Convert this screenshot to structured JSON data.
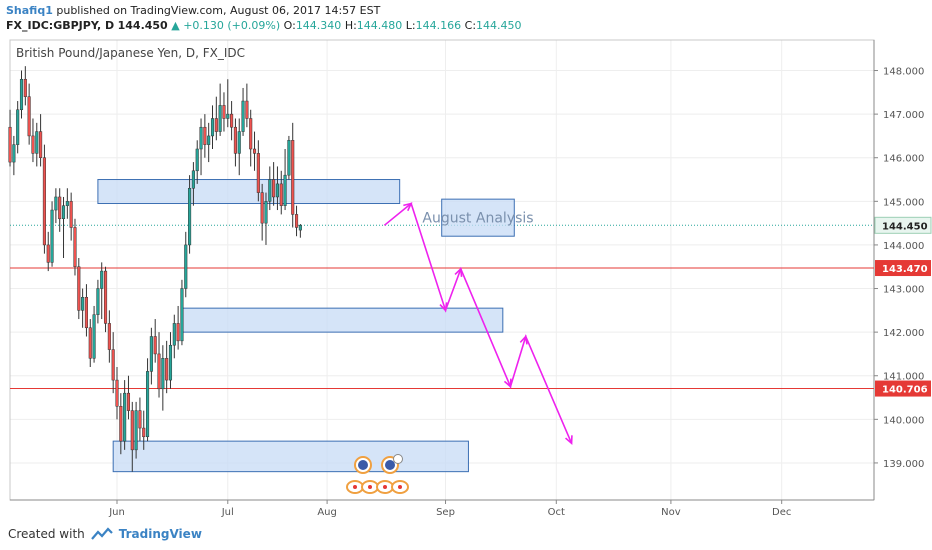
{
  "header": {
    "author": "Shafiq1",
    "published_text": "published on TradingView.com, August 06, 2017 14:57 EST",
    "symbol": "FX_IDC:GBPJPY, D",
    "last": "144.450",
    "change": "+0.130 (+0.09%)",
    "o_label": "O:",
    "o": "144.340",
    "h_label": "H:",
    "h": "144.480",
    "l_label": "L:",
    "l": "144.166",
    "c_label": "C:",
    "c": "144.450"
  },
  "footer": {
    "created_with": "Created with",
    "brand": "TradingView"
  },
  "colors": {
    "up": "#26a69a",
    "down": "#ef5350",
    "zone_fill": "#c7dbf5",
    "zone_stroke": "#3c6fb3",
    "red_line": "#e53935",
    "arrow": "#ee22ee",
    "price_dotted": "#26a69a",
    "axis_text": "#555555"
  },
  "chart_data": {
    "type": "candlestick",
    "title": "British Pound/Japanese Yen, D, FX_IDC",
    "y_ticks": [
      "148.000",
      "147.000",
      "146.000",
      "145.000",
      "144.000",
      "143.000",
      "142.000",
      "141.000",
      "140.000",
      "139.000"
    ],
    "x_ticks": [
      "Jun",
      "Jul",
      "Aug",
      "Sep",
      "Oct",
      "Nov",
      "Dec"
    ],
    "ylim": [
      138.15,
      148.7
    ],
    "last_price_label": "144.450",
    "last_price": 144.45,
    "levels": [
      {
        "price": 143.47,
        "label": "143.470"
      },
      {
        "price": 140.706,
        "label": "140.706"
      }
    ],
    "zones": [
      {
        "from_day": -5,
        "to_day": 74,
        "low": 144.95,
        "high": 145.5
      },
      {
        "from_day": 17,
        "to_day": 101,
        "low": 142.0,
        "high": 142.55
      },
      {
        "from_day": -1,
        "to_day": 92,
        "low": 138.8,
        "high": 139.5
      }
    ],
    "annotation": {
      "text": "August Analysis",
      "from_day": 85,
      "to_day": 104,
      "low": 144.2,
      "high": 145.05
    },
    "projection": [
      {
        "day": 70,
        "price": 144.45
      },
      {
        "day": 77,
        "price": 144.95
      },
      {
        "day": 86,
        "price": 142.5
      },
      {
        "day": 90,
        "price": 143.45
      },
      {
        "day": 103,
        "price": 140.75
      },
      {
        "day": 107,
        "price": 141.9
      },
      {
        "day": 119,
        "price": 139.45
      }
    ],
    "candles": [
      {
        "d": -28,
        "o": 146.7,
        "h": 147.1,
        "l": 145.8,
        "c": 145.9
      },
      {
        "d": -27,
        "o": 145.9,
        "h": 146.5,
        "l": 145.6,
        "c": 146.3
      },
      {
        "d": -26,
        "o": 146.3,
        "h": 147.3,
        "l": 146.1,
        "c": 147.1
      },
      {
        "d": -25,
        "o": 147.1,
        "h": 148.0,
        "l": 146.9,
        "c": 147.8
      },
      {
        "d": -24,
        "o": 147.8,
        "h": 148.1,
        "l": 147.2,
        "c": 147.4
      },
      {
        "d": -23,
        "o": 147.4,
        "h": 147.7,
        "l": 146.3,
        "c": 146.5
      },
      {
        "d": -22,
        "o": 146.5,
        "h": 146.9,
        "l": 145.9,
        "c": 146.1
      },
      {
        "d": -21,
        "o": 146.1,
        "h": 146.8,
        "l": 145.8,
        "c": 146.6
      },
      {
        "d": -20,
        "o": 146.6,
        "h": 147.0,
        "l": 145.8,
        "c": 146.0
      },
      {
        "d": -19,
        "o": 146.0,
        "h": 146.3,
        "l": 143.8,
        "c": 144.0
      },
      {
        "d": -18,
        "o": 144.0,
        "h": 144.3,
        "l": 143.4,
        "c": 143.6
      },
      {
        "d": -17,
        "o": 143.6,
        "h": 145.0,
        "l": 143.5,
        "c": 144.8
      },
      {
        "d": -16,
        "o": 144.8,
        "h": 145.3,
        "l": 144.5,
        "c": 145.1
      },
      {
        "d": -15,
        "o": 145.1,
        "h": 145.3,
        "l": 144.3,
        "c": 144.6
      },
      {
        "d": -14,
        "o": 144.6,
        "h": 145.1,
        "l": 143.7,
        "c": 144.9
      },
      {
        "d": -13,
        "o": 144.9,
        "h": 145.3,
        "l": 144.6,
        "c": 145.0
      },
      {
        "d": -12,
        "o": 145.0,
        "h": 145.2,
        "l": 144.1,
        "c": 144.4
      },
      {
        "d": -11,
        "o": 144.4,
        "h": 144.6,
        "l": 143.3,
        "c": 143.5
      },
      {
        "d": -10,
        "o": 143.5,
        "h": 143.7,
        "l": 142.3,
        "c": 142.5
      },
      {
        "d": -9,
        "o": 142.5,
        "h": 143.0,
        "l": 142.1,
        "c": 142.8
      },
      {
        "d": -8,
        "o": 142.8,
        "h": 143.1,
        "l": 141.9,
        "c": 142.1
      },
      {
        "d": -7,
        "o": 142.1,
        "h": 142.3,
        "l": 141.2,
        "c": 141.4
      },
      {
        "d": -6,
        "o": 141.4,
        "h": 142.6,
        "l": 141.3,
        "c": 142.4
      },
      {
        "d": -5,
        "o": 142.4,
        "h": 143.2,
        "l": 142.2,
        "c": 143.0
      },
      {
        "d": -4,
        "o": 143.0,
        "h": 143.6,
        "l": 142.3,
        "c": 143.4
      },
      {
        "d": -3,
        "o": 143.4,
        "h": 143.5,
        "l": 142.0,
        "c": 142.2
      },
      {
        "d": -2,
        "o": 142.2,
        "h": 142.5,
        "l": 141.3,
        "c": 141.6
      },
      {
        "d": -1,
        "o": 141.6,
        "h": 142.0,
        "l": 140.6,
        "c": 140.9
      },
      {
        "d": 0,
        "o": 140.9,
        "h": 141.2,
        "l": 140.0,
        "c": 140.3
      },
      {
        "d": 1,
        "o": 140.3,
        "h": 140.6,
        "l": 139.2,
        "c": 139.5
      },
      {
        "d": 2,
        "o": 139.5,
        "h": 140.9,
        "l": 139.3,
        "c": 140.6
      },
      {
        "d": 3,
        "o": 140.6,
        "h": 141.0,
        "l": 140.0,
        "c": 140.2
      },
      {
        "d": 4,
        "o": 140.2,
        "h": 140.4,
        "l": 138.8,
        "c": 139.3
      },
      {
        "d": 5,
        "o": 139.3,
        "h": 140.4,
        "l": 139.1,
        "c": 140.2
      },
      {
        "d": 6,
        "o": 140.2,
        "h": 140.5,
        "l": 139.5,
        "c": 139.8
      },
      {
        "d": 7,
        "o": 139.8,
        "h": 140.2,
        "l": 139.3,
        "c": 139.6
      },
      {
        "d": 8,
        "o": 139.6,
        "h": 141.4,
        "l": 139.5,
        "c": 141.1
      },
      {
        "d": 9,
        "o": 141.1,
        "h": 142.1,
        "l": 140.8,
        "c": 141.9
      },
      {
        "d": 10,
        "o": 141.9,
        "h": 142.3,
        "l": 141.3,
        "c": 141.5
      },
      {
        "d": 11,
        "o": 141.5,
        "h": 142.0,
        "l": 140.5,
        "c": 140.7
      },
      {
        "d": 12,
        "o": 140.7,
        "h": 141.7,
        "l": 140.2,
        "c": 141.4
      },
      {
        "d": 13,
        "o": 141.4,
        "h": 141.8,
        "l": 140.6,
        "c": 140.9
      },
      {
        "d": 14,
        "o": 140.9,
        "h": 142.0,
        "l": 140.7,
        "c": 141.7
      },
      {
        "d": 15,
        "o": 141.7,
        "h": 142.4,
        "l": 141.4,
        "c": 142.2
      },
      {
        "d": 16,
        "o": 142.2,
        "h": 142.6,
        "l": 141.6,
        "c": 141.8
      },
      {
        "d": 17,
        "o": 141.8,
        "h": 143.2,
        "l": 141.7,
        "c": 143.0
      },
      {
        "d": 18,
        "o": 143.0,
        "h": 144.3,
        "l": 142.8,
        "c": 144.0
      },
      {
        "d": 19,
        "o": 144.0,
        "h": 145.6,
        "l": 143.8,
        "c": 145.3
      },
      {
        "d": 20,
        "o": 145.3,
        "h": 145.9,
        "l": 144.9,
        "c": 145.7
      },
      {
        "d": 21,
        "o": 145.7,
        "h": 146.4,
        "l": 145.4,
        "c": 146.2
      },
      {
        "d": 22,
        "o": 146.2,
        "h": 146.9,
        "l": 145.6,
        "c": 146.7
      },
      {
        "d": 23,
        "o": 146.7,
        "h": 147.0,
        "l": 146.0,
        "c": 146.3
      },
      {
        "d": 24,
        "o": 146.3,
        "h": 146.8,
        "l": 145.9,
        "c": 146.5
      },
      {
        "d": 25,
        "o": 146.5,
        "h": 147.2,
        "l": 146.2,
        "c": 146.9
      },
      {
        "d": 26,
        "o": 146.9,
        "h": 147.4,
        "l": 146.4,
        "c": 146.6
      },
      {
        "d": 27,
        "o": 146.6,
        "h": 147.7,
        "l": 146.5,
        "c": 147.2
      },
      {
        "d": 28,
        "o": 147.2,
        "h": 147.5,
        "l": 146.6,
        "c": 146.9
      },
      {
        "d": 29,
        "o": 146.9,
        "h": 147.8,
        "l": 146.7,
        "c": 147.0
      },
      {
        "d": 30,
        "o": 147.0,
        "h": 147.3,
        "l": 146.4,
        "c": 146.7
      },
      {
        "d": 31,
        "o": 146.7,
        "h": 146.9,
        "l": 145.8,
        "c": 146.1
      },
      {
        "d": 32,
        "o": 146.1,
        "h": 146.9,
        "l": 145.6,
        "c": 146.6
      },
      {
        "d": 33,
        "o": 146.6,
        "h": 147.6,
        "l": 146.5,
        "c": 147.3
      },
      {
        "d": 34,
        "o": 147.3,
        "h": 147.7,
        "l": 146.7,
        "c": 146.9
      },
      {
        "d": 35,
        "o": 146.9,
        "h": 147.1,
        "l": 145.8,
        "c": 146.2
      },
      {
        "d": 36,
        "o": 146.2,
        "h": 146.6,
        "l": 145.7,
        "c": 146.1
      },
      {
        "d": 37,
        "o": 146.1,
        "h": 146.4,
        "l": 145.0,
        "c": 145.2
      },
      {
        "d": 38,
        "o": 145.2,
        "h": 145.4,
        "l": 144.1,
        "c": 144.5
      },
      {
        "d": 39,
        "o": 144.5,
        "h": 145.2,
        "l": 144.0,
        "c": 145.0
      },
      {
        "d": 40,
        "o": 145.0,
        "h": 145.8,
        "l": 144.8,
        "c": 145.5
      },
      {
        "d": 41,
        "o": 145.5,
        "h": 145.9,
        "l": 144.9,
        "c": 145.1
      },
      {
        "d": 42,
        "o": 145.1,
        "h": 145.8,
        "l": 144.8,
        "c": 145.4
      },
      {
        "d": 43,
        "o": 145.4,
        "h": 145.7,
        "l": 144.7,
        "c": 144.9
      },
      {
        "d": 44,
        "o": 144.9,
        "h": 146.2,
        "l": 144.8,
        "c": 145.6
      },
      {
        "d": 45,
        "o": 145.6,
        "h": 146.5,
        "l": 145.5,
        "c": 146.4
      },
      {
        "d": 46,
        "o": 146.4,
        "h": 146.8,
        "l": 144.4,
        "c": 144.7
      },
      {
        "d": 47,
        "o": 144.7,
        "h": 144.9,
        "l": 144.2,
        "c": 144.4
      },
      {
        "d": 48,
        "o": 144.34,
        "h": 144.48,
        "l": 144.166,
        "c": 144.45
      }
    ]
  }
}
